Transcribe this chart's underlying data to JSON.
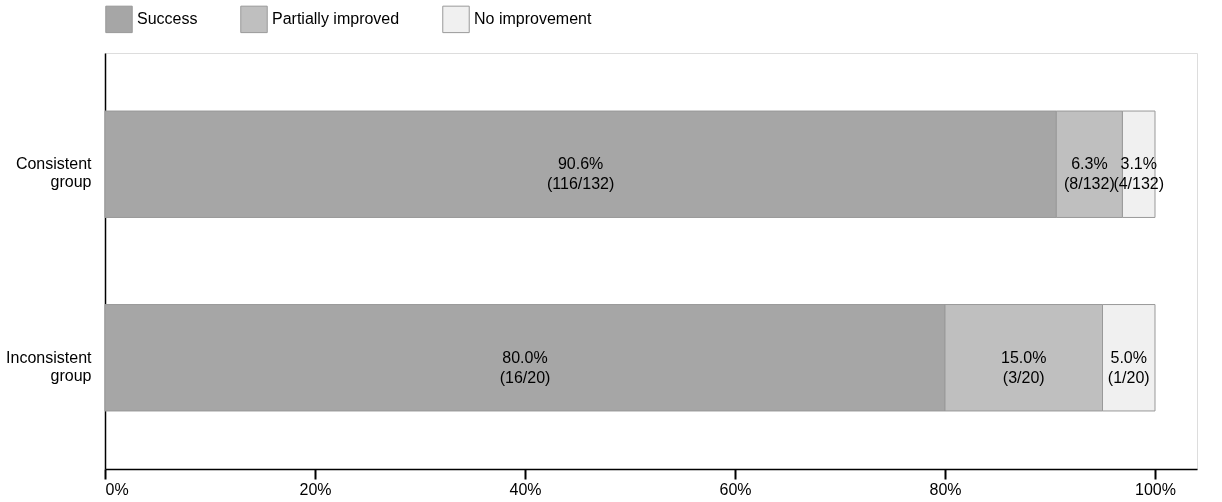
{
  "chart_data": {
    "type": "bar",
    "orientation": "horizontal",
    "stacked": true,
    "categories": [
      "Consistent group",
      "Inconsistent group"
    ],
    "series": [
      {
        "name": "Success",
        "color": "#a6a6a6",
        "values": [
          90.6,
          80.0
        ],
        "value_labels": [
          "90.6%\n(116/132)",
          "80.0%\n(16/20)"
        ]
      },
      {
        "name": "Partially improved",
        "color": "#bfbfbf",
        "values": [
          6.3,
          15.0
        ],
        "value_labels": [
          "6.3%\n(8/132)",
          "15.0%\n(3/20)"
        ]
      },
      {
        "name": "No improvement",
        "color": "#f0f0f0",
        "values": [
          3.1,
          5.0
        ],
        "value_labels": [
          "3.1%\n(4/132)",
          "5.0%\n(1/20)"
        ]
      }
    ],
    "xlim": [
      0,
      104
    ],
    "xticks": [
      {
        "value": 0,
        "label": "0%"
      },
      {
        "value": 20,
        "label": "20%"
      },
      {
        "value": 40,
        "label": "40%"
      },
      {
        "value": 60,
        "label": "60%"
      },
      {
        "value": 80,
        "label": "80%"
      },
      {
        "value": 100,
        "label": "100%"
      }
    ],
    "legend": "top",
    "grid": false
  }
}
